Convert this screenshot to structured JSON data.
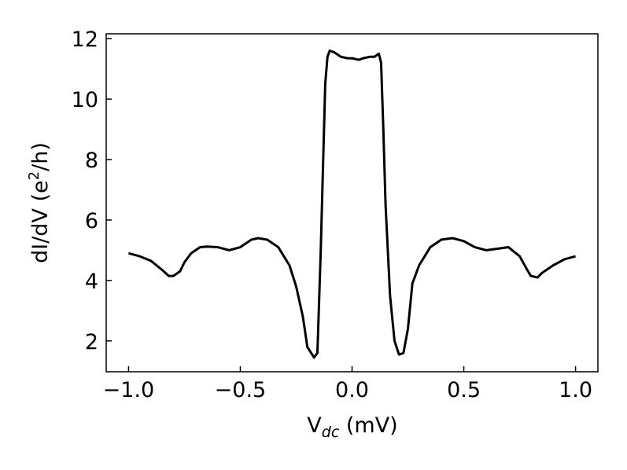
{
  "chart_data": {
    "type": "line",
    "xlabel": [
      "V",
      "dc",
      " (mV)"
    ],
    "ylabel": [
      "dI/dV (e",
      "2",
      "/h)"
    ],
    "xlim": [
      -1.1,
      1.1
    ],
    "ylim": [
      0.98,
      12.16
    ],
    "xticks": [
      {
        "value": -1.0,
        "label": "−1.0"
      },
      {
        "value": -0.5,
        "label": "−0.5"
      },
      {
        "value": 0.0,
        "label": "0.0"
      },
      {
        "value": 0.5,
        "label": "0.5"
      },
      {
        "value": 1.0,
        "label": "1.0"
      }
    ],
    "yticks": [
      2,
      4,
      6,
      8,
      10,
      12
    ],
    "grid": false,
    "series": [
      {
        "color": "#000000",
        "x": [
          -1.0,
          -0.95,
          -0.9,
          -0.85,
          -0.82,
          -0.8,
          -0.77,
          -0.75,
          -0.72,
          -0.68,
          -0.65,
          -0.6,
          -0.55,
          -0.5,
          -0.45,
          -0.42,
          -0.38,
          -0.33,
          -0.28,
          -0.25,
          -0.22,
          -0.2,
          -0.17,
          -0.155,
          -0.14,
          -0.12,
          -0.11,
          -0.1,
          -0.08,
          -0.05,
          -0.02,
          0.0,
          0.03,
          0.05,
          0.08,
          0.1,
          0.12,
          0.13,
          0.14,
          0.15,
          0.17,
          0.19,
          0.21,
          0.23,
          0.25,
          0.27,
          0.3,
          0.35,
          0.4,
          0.45,
          0.5,
          0.55,
          0.6,
          0.65,
          0.7,
          0.75,
          0.78,
          0.8,
          0.83,
          0.85,
          0.9,
          0.95,
          1.0
        ],
        "values": [
          4.9,
          4.8,
          4.65,
          4.35,
          4.15,
          4.15,
          4.3,
          4.6,
          4.9,
          5.1,
          5.12,
          5.1,
          5.0,
          5.1,
          5.35,
          5.4,
          5.35,
          5.1,
          4.5,
          3.8,
          2.8,
          1.8,
          1.45,
          1.6,
          5.0,
          10.5,
          11.4,
          11.6,
          11.55,
          11.4,
          11.35,
          11.35,
          11.3,
          11.35,
          11.4,
          11.4,
          11.5,
          11.2,
          9.0,
          6.5,
          3.5,
          2.0,
          1.55,
          1.6,
          2.4,
          3.9,
          4.5,
          5.1,
          5.35,
          5.4,
          5.3,
          5.1,
          5.0,
          5.05,
          5.1,
          4.8,
          4.4,
          4.15,
          4.1,
          4.25,
          4.5,
          4.7,
          4.8
        ]
      }
    ]
  }
}
